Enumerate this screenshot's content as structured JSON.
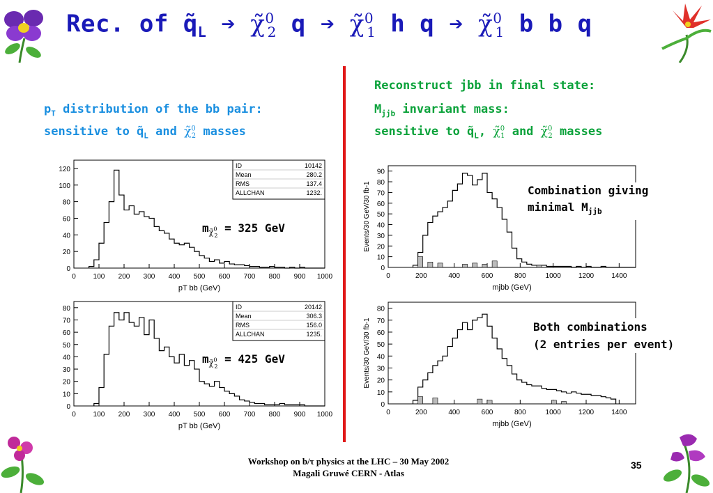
{
  "title": {
    "prefix": "Rec. of q̃",
    "sub_L": "L",
    "arrow1": "➔",
    "chi1": "χ̃",
    "sup1": "0",
    "sub1": "2",
    "mid1": "q",
    "arrow2": "➔",
    "chi2": "χ̃",
    "sup2": "0",
    "sub2": "1",
    "mid2": "h q",
    "arrow3": "➔",
    "chi3": "χ̃",
    "sup3": "0",
    "sub3": "1",
    "end": "b b q"
  },
  "left_text": {
    "line1_p": "p",
    "line1_sub": "T",
    "line1_rest": " distribution of the bb pair:",
    "line2_a": "sensitive to q̃",
    "line2_sub": "L",
    "line2_and": " and ",
    "line2_chi": "χ̃",
    "line2_sup": "0",
    "line2_sub2": "2",
    "line2_end": " masses"
  },
  "right_text": {
    "line1": "Reconstruct jbb in final state:",
    "line2_M": "M",
    "line2_sub": "jjb",
    "line2_rest": " invariant mass:",
    "line3_a": "sensitive to q̃",
    "line3_sub": "L",
    "line3_comma": ", ",
    "line3_chi": "χ̃",
    "line3_sup": "0",
    "line3_sub1": "1",
    "line3_and": " and ",
    "line3_chi2": "χ̃",
    "line3_sup2": "0",
    "line3_sub2": "2",
    "line3_end": " masses"
  },
  "mass_labels": {
    "top_m": "m",
    "top_chi": "χ̃",
    "top_sup": "0",
    "top_sub": "2",
    "top_value": " = 325 GeV",
    "bottom_m": "m",
    "bottom_chi": "χ̃",
    "bottom_sup": "0",
    "bottom_sub": "2",
    "bottom_value": " = 425 GeV"
  },
  "notes": {
    "top_line1": "Combination giving",
    "top_line2": "minimal M",
    "top_line2_sub": "jjb",
    "bottom_line1": "Both combinations",
    "bottom_line2": "(2 entries per event)"
  },
  "footer": {
    "line1": "Workshop on b/τ physics at the LHC – 30 May 2002",
    "line2": "Magali Gruwé CERN - Atlas",
    "page": "35"
  },
  "colors": {
    "title": "#1a1ab8",
    "left_text": "#1a8fe0",
    "right_text": "#0aa23a",
    "divider": "#e01818"
  },
  "chart_data": [
    {
      "type": "bar",
      "name": "pt_bb_325",
      "title": "",
      "xlabel": "pT bb (GeV)",
      "ylabel": "",
      "xlim": [
        0,
        1000
      ],
      "ylim": [
        0,
        130
      ],
      "xticks": [
        0,
        100,
        200,
        300,
        400,
        500,
        600,
        700,
        800,
        900,
        1000
      ],
      "yticks": [
        0,
        20,
        40,
        60,
        80,
        100,
        120
      ],
      "bin_width": 20,
      "bin_start": 60,
      "values": [
        2,
        10,
        30,
        55,
        80,
        118,
        88,
        70,
        75,
        65,
        68,
        62,
        60,
        50,
        45,
        42,
        35,
        30,
        28,
        30,
        25,
        20,
        15,
        12,
        8,
        10,
        6,
        8,
        5,
        4,
        4,
        3,
        2,
        2,
        1,
        1,
        2,
        1,
        1,
        0,
        1,
        0,
        1,
        0,
        0,
        0,
        0
      ],
      "stats": {
        "ID": "10142",
        "Mean": "280.2",
        "RMS": "137.4",
        "ALLCHAN": "1232."
      }
    },
    {
      "type": "bar",
      "name": "pt_bb_425",
      "title": "",
      "xlabel": "pT bb (GeV)",
      "ylabel": "",
      "xlim": [
        0,
        1000
      ],
      "ylim": [
        0,
        85
      ],
      "xticks": [
        0,
        100,
        200,
        300,
        400,
        500,
        600,
        700,
        800,
        900,
        1000
      ],
      "yticks": [
        0,
        10,
        20,
        30,
        40,
        50,
        60,
        70,
        80
      ],
      "bin_width": 20,
      "bin_start": 80,
      "values": [
        2,
        15,
        42,
        65,
        76,
        70,
        76,
        68,
        65,
        72,
        58,
        70,
        55,
        45,
        48,
        40,
        35,
        42,
        33,
        37,
        30,
        20,
        18,
        16,
        20,
        15,
        12,
        10,
        8,
        5,
        4,
        3,
        2,
        2,
        1,
        1,
        1,
        2,
        1,
        1,
        1,
        1,
        0,
        0,
        0,
        0
      ],
      "stats": {
        "ID": "20142",
        "Mean": "306.3",
        "RMS": "156.0",
        "ALLCHAN": "1235."
      }
    },
    {
      "type": "bar",
      "name": "mjbb_minimal",
      "title": "",
      "xlabel": "mjbb (GeV)",
      "ylabel": "Events/30 GeV/30 fb-1",
      "xlim": [
        0,
        1500
      ],
      "ylim": [
        0,
        95
      ],
      "xticks": [
        0,
        200,
        400,
        600,
        800,
        1000,
        1200,
        1400
      ],
      "yticks": [
        0,
        10,
        20,
        30,
        40,
        50,
        60,
        70,
        80,
        90
      ],
      "bin_width": 30,
      "bin_start": 150,
      "values": [
        2,
        14,
        30,
        42,
        48,
        52,
        56,
        62,
        72,
        78,
        88,
        86,
        77,
        82,
        88,
        70,
        64,
        56,
        45,
        33,
        18,
        8,
        5,
        3,
        2,
        2,
        2,
        1,
        1,
        1,
        1,
        1,
        0,
        1,
        0,
        1,
        0,
        0,
        1,
        0,
        0,
        0,
        0,
        0,
        0
      ]
    },
    {
      "type": "bar",
      "name": "mjbb_both",
      "title": "",
      "xlabel": "mjbb (GeV)",
      "ylabel": "Events/30 GeV/30 fb-1",
      "xlim": [
        0,
        1500
      ],
      "ylim": [
        0,
        85
      ],
      "xticks": [
        0,
        200,
        400,
        600,
        800,
        1000,
        1200,
        1400
      ],
      "yticks": [
        0,
        10,
        20,
        30,
        40,
        50,
        60,
        70,
        80
      ],
      "bin_width": 30,
      "bin_start": 150,
      "values": [
        3,
        14,
        20,
        26,
        32,
        36,
        40,
        48,
        55,
        62,
        68,
        62,
        70,
        72,
        75,
        65,
        55,
        46,
        38,
        32,
        25,
        20,
        18,
        16,
        15,
        15,
        13,
        12,
        12,
        11,
        10,
        9,
        10,
        9,
        8,
        8,
        7,
        7,
        6,
        5,
        4
      ]
    }
  ]
}
